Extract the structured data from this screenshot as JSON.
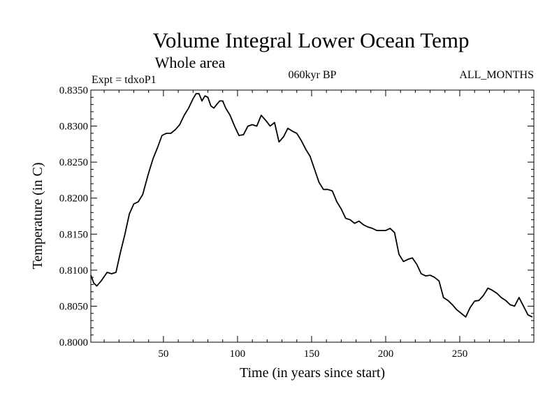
{
  "chart_data": {
    "type": "line",
    "title": "Volume Integral Lower Ocean Temp",
    "subtitle": "Whole area",
    "experiment_label": "Expt = tdxoP1",
    "period_label": "060kyr BP",
    "months_label": "ALL_MONTHS",
    "xlabel": "Time (in years since start)",
    "ylabel": "Temperature (in C)",
    "xlim": [
      1,
      300
    ],
    "ylim": [
      0.8,
      0.835
    ],
    "x_ticks": [
      50,
      100,
      150,
      200,
      250
    ],
    "x_tick_labels": [
      "50",
      "100",
      "150",
      "200",
      "250"
    ],
    "y_ticks": [
      0.8,
      0.805,
      0.81,
      0.815,
      0.82,
      0.825,
      0.83,
      0.835
    ],
    "y_tick_labels": [
      "0.8000",
      "0.8050",
      "0.8100",
      "0.8150",
      "0.8200",
      "0.8250",
      "0.8300",
      "0.8350"
    ],
    "grid": false,
    "line_color": "#000000",
    "series": [
      {
        "name": "Temperature",
        "x": [
          1,
          3,
          5,
          8,
          12,
          15,
          18,
          21,
          24,
          27,
          30,
          33,
          36,
          40,
          43,
          46,
          49,
          52,
          55,
          58,
          61,
          64,
          67,
          70,
          72,
          74,
          76,
          78,
          80,
          82,
          84,
          86,
          88,
          90,
          92,
          95,
          98,
          101,
          104,
          107,
          110,
          113,
          116,
          119,
          122,
          125,
          128,
          131,
          134,
          137,
          140,
          143,
          146,
          149,
          152,
          155,
          158,
          161,
          164,
          167,
          170,
          173,
          176,
          179,
          182,
          185,
          188,
          191,
          194,
          197,
          200,
          203,
          206,
          209,
          212,
          215,
          218,
          221,
          224,
          227,
          230,
          233,
          236,
          239,
          242,
          245,
          248,
          251,
          254,
          257,
          260,
          263,
          266,
          269,
          272,
          275,
          278,
          281,
          284,
          287,
          290,
          293,
          296,
          299
        ],
        "y": [
          0.8093,
          0.8082,
          0.8078,
          0.8085,
          0.8097,
          0.8095,
          0.8097,
          0.8125,
          0.815,
          0.8178,
          0.8192,
          0.8195,
          0.8205,
          0.8235,
          0.8255,
          0.827,
          0.8287,
          0.829,
          0.829,
          0.8295,
          0.8302,
          0.8315,
          0.8325,
          0.8338,
          0.8345,
          0.8345,
          0.8335,
          0.8342,
          0.834,
          0.8328,
          0.8325,
          0.833,
          0.8335,
          0.8335,
          0.8325,
          0.8315,
          0.83,
          0.8287,
          0.8288,
          0.83,
          0.8302,
          0.83,
          0.8315,
          0.8308,
          0.83,
          0.8305,
          0.8278,
          0.8285,
          0.8297,
          0.8293,
          0.829,
          0.828,
          0.8268,
          0.8258,
          0.824,
          0.8222,
          0.8212,
          0.8212,
          0.821,
          0.8195,
          0.8185,
          0.8172,
          0.817,
          0.8165,
          0.8168,
          0.8163,
          0.816,
          0.8158,
          0.8155,
          0.8155,
          0.8155,
          0.8158,
          0.8152,
          0.8122,
          0.8112,
          0.8115,
          0.8117,
          0.8108,
          0.8095,
          0.8092,
          0.8093,
          0.809,
          0.8085,
          0.8062,
          0.8058,
          0.8052,
          0.8045,
          0.804,
          0.8035,
          0.8048,
          0.8057,
          0.8058,
          0.8065,
          0.8075,
          0.8072,
          0.8068,
          0.8062,
          0.8058,
          0.8052,
          0.805,
          0.8062,
          0.805,
          0.8038,
          0.8035
        ]
      }
    ]
  }
}
